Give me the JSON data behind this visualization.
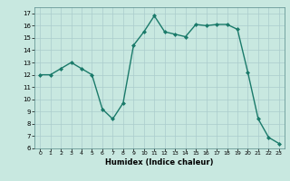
{
  "x": [
    0,
    1,
    2,
    3,
    4,
    5,
    6,
    7,
    8,
    9,
    10,
    11,
    12,
    13,
    14,
    15,
    16,
    17,
    18,
    19,
    20,
    21,
    22,
    23
  ],
  "y": [
    12,
    12,
    12.5,
    13,
    12.5,
    12,
    9.2,
    8.4,
    9.7,
    14.4,
    15.5,
    16.8,
    15.5,
    15.3,
    15.1,
    16.1,
    16.0,
    16.1,
    16.1,
    15.7,
    12.2,
    8.4,
    6.9,
    6.4
  ],
  "line_color": "#1a7a6a",
  "marker_color": "#1a7a6a",
  "bg_color": "#c8e8e0",
  "grid_color": "#aacccc",
  "xlabel": "Humidex (Indice chaleur)",
  "ylim": [
    6,
    17.5
  ],
  "xlim": [
    -0.5,
    23.5
  ],
  "yticks": [
    6,
    7,
    8,
    9,
    10,
    11,
    12,
    13,
    14,
    15,
    16,
    17
  ],
  "xticks": [
    0,
    1,
    2,
    3,
    4,
    5,
    6,
    7,
    8,
    9,
    10,
    11,
    12,
    13,
    14,
    15,
    16,
    17,
    18,
    19,
    20,
    21,
    22,
    23
  ]
}
